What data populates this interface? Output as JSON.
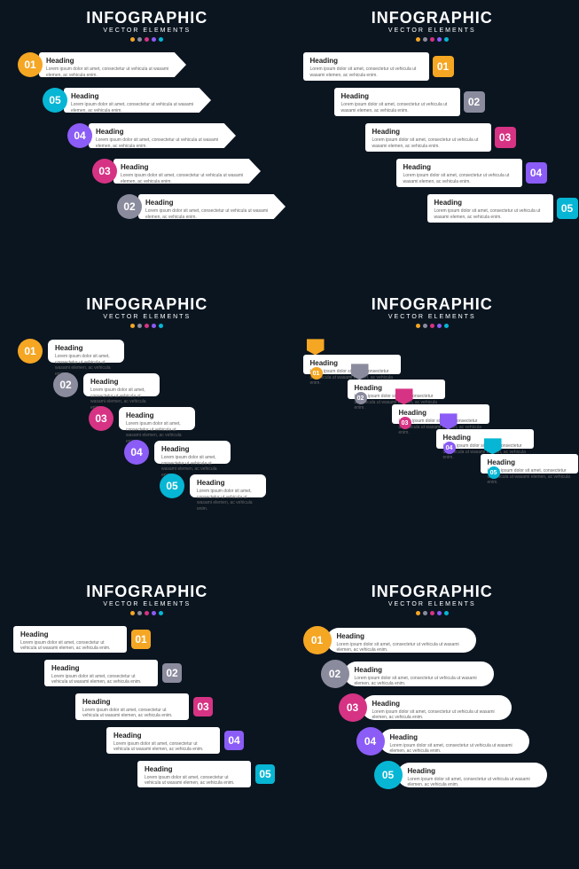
{
  "title": "INFOGRAPHIC",
  "subtitle": "VECTOR ELEMENTS",
  "dot_colors": [
    "#f5a623",
    "#8b8b9e",
    "#d63384",
    "#8b5cf6",
    "#06b6d4"
  ],
  "heading": "Heading",
  "lorem": "Lorem ipsum dolor sit amet, consectetur ut vehicula ut wasami elemen, ac vehicula enim.",
  "sections": [
    {
      "style": "s1",
      "items": [
        {
          "num": "01",
          "color": "#f5a623"
        },
        {
          "num": "05",
          "color": "#06b6d4"
        },
        {
          "num": "04",
          "color": "#8b5cf6"
        },
        {
          "num": "03",
          "color": "#d63384"
        },
        {
          "num": "02",
          "color": "#8b8b9e"
        }
      ]
    },
    {
      "style": "s2",
      "items": [
        {
          "num": "01",
          "color": "#f5a623"
        },
        {
          "num": "02",
          "color": "#8b8b9e"
        },
        {
          "num": "03",
          "color": "#d63384"
        },
        {
          "num": "04",
          "color": "#8b5cf6"
        },
        {
          "num": "05",
          "color": "#06b6d4"
        }
      ]
    },
    {
      "style": "s3",
      "items": [
        {
          "num": "01",
          "color": "#f5a623"
        },
        {
          "num": "02",
          "color": "#8b8b9e"
        },
        {
          "num": "03",
          "color": "#d63384"
        },
        {
          "num": "04",
          "color": "#8b5cf6"
        },
        {
          "num": "05",
          "color": "#06b6d4"
        }
      ]
    },
    {
      "style": "s4",
      "items": [
        {
          "num": "01",
          "color": "#f5a623"
        },
        {
          "num": "02",
          "color": "#8b8b9e"
        },
        {
          "num": "03",
          "color": "#d63384"
        },
        {
          "num": "04",
          "color": "#8b5cf6"
        },
        {
          "num": "05",
          "color": "#06b6d4"
        }
      ]
    },
    {
      "style": "s5",
      "items": [
        {
          "num": "01",
          "color": "#f5a623"
        },
        {
          "num": "02",
          "color": "#8b8b9e"
        },
        {
          "num": "03",
          "color": "#d63384"
        },
        {
          "num": "04",
          "color": "#8b5cf6"
        },
        {
          "num": "05",
          "color": "#06b6d4"
        }
      ]
    },
    {
      "style": "s6",
      "items": [
        {
          "num": "01",
          "color": "#f5a623"
        },
        {
          "num": "02",
          "color": "#8b8b9e"
        },
        {
          "num": "03",
          "color": "#d63384"
        },
        {
          "num": "04",
          "color": "#8b5cf6"
        },
        {
          "num": "05",
          "color": "#06b6d4"
        }
      ]
    }
  ]
}
